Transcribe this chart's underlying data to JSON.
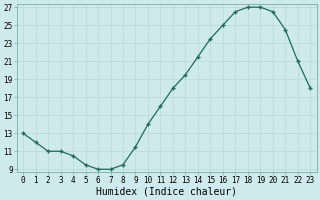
{
  "x": [
    0,
    1,
    2,
    3,
    4,
    5,
    6,
    7,
    8,
    9,
    10,
    11,
    12,
    13,
    14,
    15,
    16,
    17,
    18,
    19,
    20,
    21,
    22,
    23
  ],
  "y": [
    13,
    12,
    11,
    11,
    10.5,
    9.5,
    9,
    9,
    9.5,
    11.5,
    14,
    16,
    18,
    19.5,
    21.5,
    23.5,
    25,
    26.5,
    27,
    27,
    26.5,
    24.5,
    21,
    18
  ],
  "xlabel": "Humidex (Indice chaleur)",
  "line_color": "#1e6b5e",
  "marker": "+",
  "bg_color": "#ceeaea",
  "grid_color": "#b8d8d8",
  "ylim": [
    9,
    27
  ],
  "xlim": [
    -0.5,
    23.5
  ],
  "yticks": [
    9,
    11,
    13,
    15,
    17,
    19,
    21,
    23,
    25,
    27
  ],
  "xticks": [
    0,
    1,
    2,
    3,
    4,
    5,
    6,
    7,
    8,
    9,
    10,
    11,
    12,
    13,
    14,
    15,
    16,
    17,
    18,
    19,
    20,
    21,
    22,
    23
  ],
  "xlabel_fontsize": 7,
  "tick_fontsize": 5.5
}
